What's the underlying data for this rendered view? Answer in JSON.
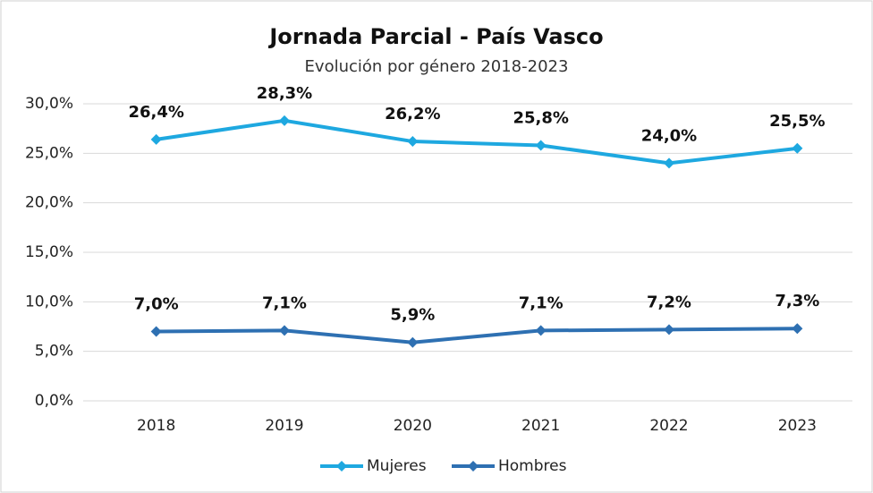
{
  "chart_data": {
    "type": "line",
    "title": "Jornada Parcial - País Vasco",
    "subtitle": "Evolución por género 2018-2023",
    "categories": [
      "2018",
      "2019",
      "2020",
      "2021",
      "2022",
      "2023"
    ],
    "series": [
      {
        "name": "Mujeres",
        "color": "#1ea8e0",
        "values": [
          26.4,
          28.3,
          26.2,
          25.8,
          24.0,
          25.5
        ],
        "value_labels": [
          "26,4%",
          "28,3%",
          "26,2%",
          "25,8%",
          "24,0%",
          "25,5%"
        ]
      },
      {
        "name": "Hombres",
        "color": "#2e70b2",
        "values": [
          7.0,
          7.1,
          5.9,
          7.1,
          7.2,
          7.3
        ],
        "value_labels": [
          "7,0%",
          "7,1%",
          "5,9%",
          "7,1%",
          "7,2%",
          "7,3%"
        ]
      }
    ],
    "ylim": [
      0,
      30
    ],
    "yticks": [
      {
        "value": 0,
        "label": "0,0%"
      },
      {
        "value": 5,
        "label": "5,0%"
      },
      {
        "value": 10,
        "label": "10,0%"
      },
      {
        "value": 15,
        "label": "15,0%"
      },
      {
        "value": 20,
        "label": "20,0%"
      },
      {
        "value": 25,
        "label": "25,0%"
      },
      {
        "value": 30,
        "label": "30,0%"
      }
    ],
    "grid": true,
    "legend": "bottom"
  }
}
